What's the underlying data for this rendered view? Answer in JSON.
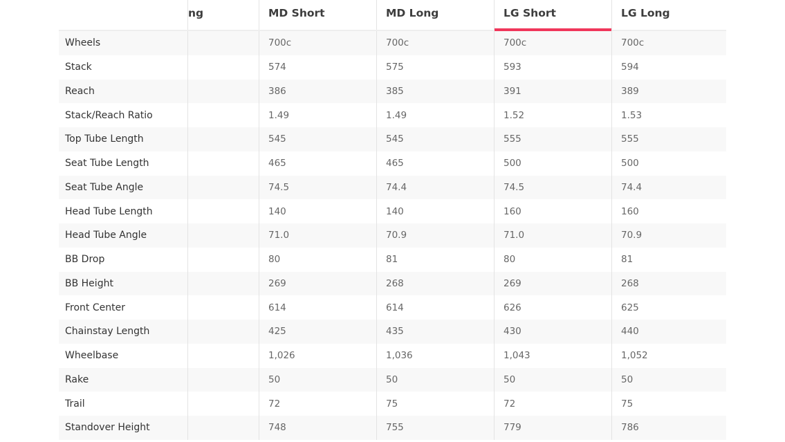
{
  "header": {
    "label_col": "",
    "clipped_col": "ng",
    "columns": [
      "MD Short",
      "MD Long",
      "LG Short",
      "LG Long"
    ],
    "active_column": "LG Short",
    "active_color": "#f0365a"
  },
  "rows": [
    {
      "label": "Wheels",
      "values": [
        "700c",
        "700c",
        "700c",
        "700c"
      ]
    },
    {
      "label": "Stack",
      "values": [
        "574",
        "575",
        "593",
        "594"
      ]
    },
    {
      "label": "Reach",
      "values": [
        "386",
        "385",
        "391",
        "389"
      ]
    },
    {
      "label": "Stack/Reach Ratio",
      "values": [
        "1.49",
        "1.49",
        "1.52",
        "1.53"
      ]
    },
    {
      "label": "Top Tube Length",
      "values": [
        "545",
        "545",
        "555",
        "555"
      ]
    },
    {
      "label": "Seat Tube Length",
      "values": [
        "465",
        "465",
        "500",
        "500"
      ]
    },
    {
      "label": "Seat Tube Angle",
      "values": [
        "74.5",
        "74.4",
        "74.5",
        "74.4"
      ]
    },
    {
      "label": "Head Tube Length",
      "values": [
        "140",
        "140",
        "160",
        "160"
      ]
    },
    {
      "label": "Head Tube Angle",
      "values": [
        "71.0",
        "70.9",
        "71.0",
        "70.9"
      ]
    },
    {
      "label": "BB Drop",
      "values": [
        "80",
        "81",
        "80",
        "81"
      ]
    },
    {
      "label": "BB Height",
      "values": [
        "269",
        "268",
        "269",
        "268"
      ]
    },
    {
      "label": "Front Center",
      "values": [
        "614",
        "614",
        "626",
        "625"
      ]
    },
    {
      "label": "Chainstay Length",
      "values": [
        "425",
        "435",
        "430",
        "440"
      ]
    },
    {
      "label": "Wheelbase",
      "values": [
        "1,026",
        "1,036",
        "1,043",
        "1,052"
      ]
    },
    {
      "label": "Rake",
      "values": [
        "50",
        "50",
        "50",
        "50"
      ]
    },
    {
      "label": "Trail",
      "values": [
        "72",
        "75",
        "72",
        "75"
      ]
    },
    {
      "label": "Standover Height",
      "values": [
        "748",
        "755",
        "779",
        "786"
      ]
    }
  ]
}
